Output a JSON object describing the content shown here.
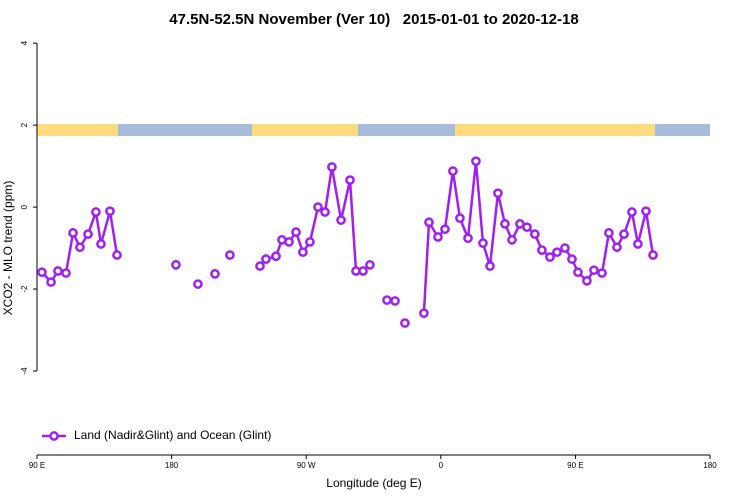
{
  "chart_data": {
    "type": "line",
    "title": "47.5N-52.5N November (Ver 10)   2015-01-01 to 2020-12-18",
    "xlabel": "Longitude (deg E)",
    "ylabel": "XCO2 - MLO trend (ppm)",
    "xlim": [
      90,
      540
    ],
    "ylim": [
      -6.05,
      4.2
    ],
    "xticks": [
      {
        "value": 90,
        "label": "90 E"
      },
      180,
      {
        "value": 270,
        "label": "90 W"
      },
      {
        "value": 360,
        "label": "0"
      },
      {
        "value": 450,
        "label": "90 E"
      },
      {
        "value": 540,
        "label": "180"
      }
    ],
    "yticks": [
      4,
      2,
      0,
      -2,
      -4
    ],
    "legend": "bottom-left",
    "x": [
      93.3,
      99.4,
      104.0,
      109.4,
      114.1,
      118.7,
      124.1,
      129.4,
      132.8,
      138.8,
      143.5,
      null,
      182.9,
      null,
      197.6,
      null,
      209.0,
      null,
      219.0,
      null,
      239.1,
      243.1,
      249.8,
      253.8,
      258.5,
      263.2,
      267.8,
      272.5,
      277.9,
      282.6,
      287.2,
      293.3,
      299.3,
      303.3,
      308.0,
      312.6,
      null,
      324.0,
      null,
      329.4,
      null,
      336.0,
      null,
      348.7,
      352.1,
      358.1,
      362.8,
      368.1,
      372.8,
      378.2,
      383.5,
      388.2,
      392.9,
      398.2,
      402.9,
      407.6,
      412.9,
      417.6,
      422.9,
      427.6,
      433.0,
      437.7,
      443.0,
      447.7,
      451.7,
      457.7,
      462.4,
      467.8,
      472.4,
      477.8,
      482.5,
      487.8,
      491.8,
      497.2,
      501.9
    ],
    "series": [
      {
        "name": "Land (Nadir&Glint) and Ocean (Glint)",
        "color": "#a020f0",
        "values": [
          -1.59,
          -1.83,
          -1.56,
          -1.61,
          -0.63,
          -0.98,
          -0.66,
          -0.12,
          -0.9,
          -0.1,
          -1.17,
          null,
          -1.41,
          null,
          -1.88,
          null,
          -1.63,
          null,
          -1.17,
          null,
          -1.44,
          -1.27,
          -1.2,
          -0.8,
          -0.85,
          -0.61,
          -1.1,
          -0.85,
          0.0,
          -0.12,
          0.98,
          -0.32,
          0.66,
          -1.56,
          -1.56,
          -1.41,
          null,
          -2.27,
          null,
          -2.29,
          null,
          -2.83,
          null,
          -2.59,
          -0.37,
          -0.73,
          -0.54,
          0.88,
          -0.27,
          -0.76,
          1.12,
          -0.88,
          -1.44,
          0.34,
          -0.41,
          -0.8,
          -0.41,
          -0.49,
          -0.66,
          -1.05,
          -1.22,
          -1.1,
          -1.0,
          -1.27,
          -1.59,
          -1.8,
          -1.54,
          -1.61,
          -0.63,
          -0.98,
          -0.66,
          -0.12,
          -0.9,
          -0.1,
          -1.17
        ]
      }
    ]
  }
}
